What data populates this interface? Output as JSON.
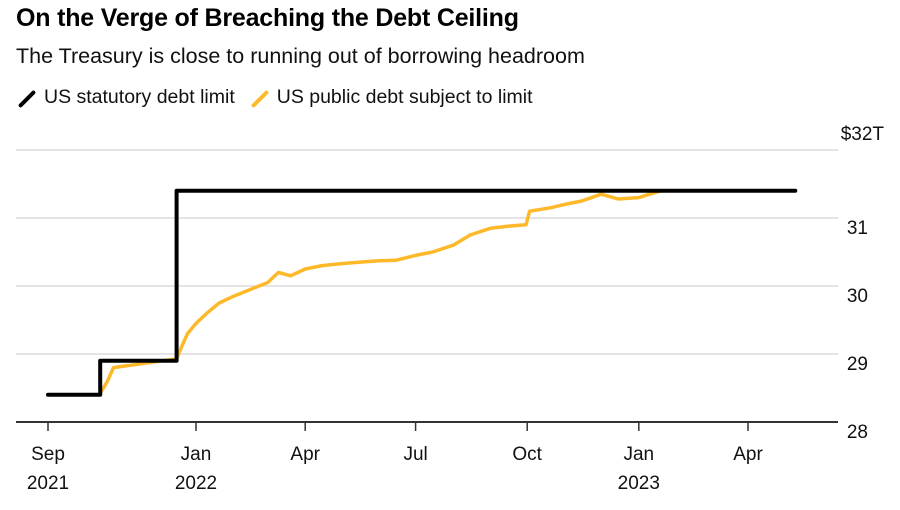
{
  "header": {
    "title": "On the Verge of Breaching the Debt Ceiling",
    "subtitle": "The Treasury is close to running out of borrowing headroom"
  },
  "legend": [
    {
      "label": "US statutory debt limit",
      "color": "#000000"
    },
    {
      "label": "US public debt subject to limit",
      "color": "#FDB92A"
    }
  ],
  "chart_data": {
    "type": "line",
    "title": "On the Verge of Breaching the Debt Ceiling",
    "subtitle": "The Treasury is close to running out of borrowing headroom",
    "xlabel": "",
    "ylabel": "$T",
    "y_unit_label": "$32T",
    "ylim": [
      28,
      32
    ],
    "y_ticks": [
      {
        "value": 32,
        "label": "$32T"
      },
      {
        "value": 31,
        "label": "31"
      },
      {
        "value": 30,
        "label": "30"
      },
      {
        "value": 29,
        "label": "29"
      },
      {
        "value": 28,
        "label": "28"
      }
    ],
    "xlim": [
      "2021-08-15",
      "2023-06-30"
    ],
    "x_ticks": [
      {
        "date": "2021-09-01",
        "label": "Sep",
        "year": "2021"
      },
      {
        "date": "2022-01-01",
        "label": "Jan",
        "year": "2022"
      },
      {
        "date": "2022-04-01",
        "label": "Apr",
        "year": ""
      },
      {
        "date": "2022-07-01",
        "label": "Jul",
        "year": ""
      },
      {
        "date": "2022-10-01",
        "label": "Oct",
        "year": ""
      },
      {
        "date": "2023-01-01",
        "label": "Jan",
        "year": "2023"
      },
      {
        "date": "2023-04-01",
        "label": "Apr",
        "year": ""
      }
    ],
    "grid": true,
    "legend_position": "top-left",
    "series": [
      {
        "name": "US statutory debt limit",
        "color": "#000000",
        "step": true,
        "points": [
          [
            "2021-09-01",
            28.4
          ],
          [
            "2021-10-14",
            28.4
          ],
          [
            "2021-10-14",
            28.9
          ],
          [
            "2021-12-16",
            28.9
          ],
          [
            "2021-12-16",
            31.4
          ],
          [
            "2023-05-10",
            31.4
          ]
        ]
      },
      {
        "name": "US public debt subject to limit",
        "color": "#FDB92A",
        "points": [
          [
            "2021-10-15",
            28.45
          ],
          [
            "2021-10-20",
            28.6
          ],
          [
            "2021-10-25",
            28.8
          ],
          [
            "2021-12-16",
            28.93
          ],
          [
            "2021-12-20",
            29.1
          ],
          [
            "2021-12-25",
            29.3
          ],
          [
            "2022-01-01",
            29.45
          ],
          [
            "2022-01-10",
            29.6
          ],
          [
            "2022-01-20",
            29.75
          ],
          [
            "2022-02-01",
            29.85
          ],
          [
            "2022-02-15",
            29.95
          ],
          [
            "2022-03-01",
            30.05
          ],
          [
            "2022-03-10",
            30.2
          ],
          [
            "2022-03-20",
            30.15
          ],
          [
            "2022-04-01",
            30.25
          ],
          [
            "2022-04-15",
            30.3
          ],
          [
            "2022-05-01",
            30.33
          ],
          [
            "2022-05-15",
            30.35
          ],
          [
            "2022-06-01",
            30.37
          ],
          [
            "2022-06-15",
            30.38
          ],
          [
            "2022-07-01",
            30.45
          ],
          [
            "2022-07-15",
            30.5
          ],
          [
            "2022-08-01",
            30.6
          ],
          [
            "2022-08-15",
            30.75
          ],
          [
            "2022-09-01",
            30.85
          ],
          [
            "2022-09-15",
            30.88
          ],
          [
            "2022-09-30",
            30.9
          ],
          [
            "2022-10-03",
            31.1
          ],
          [
            "2022-10-20",
            31.15
          ],
          [
            "2022-11-01",
            31.2
          ],
          [
            "2022-11-15",
            31.25
          ],
          [
            "2022-12-01",
            31.35
          ],
          [
            "2022-12-15",
            31.28
          ],
          [
            "2023-01-01",
            31.3
          ],
          [
            "2023-01-10",
            31.35
          ],
          [
            "2023-01-19",
            31.4
          ]
        ]
      }
    ]
  }
}
